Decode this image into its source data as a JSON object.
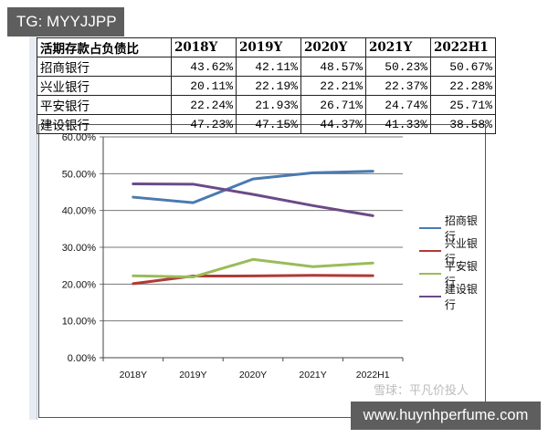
{
  "overlay": {
    "top_badge": "TG: MYYJJPP",
    "bottom_badge": "www.huynhperfume.com",
    "watermark": "雪球：平凡价投人"
  },
  "table": {
    "header": [
      "活期存款占负债比",
      "2018Y",
      "2019Y",
      "2020Y",
      "2021Y",
      "2022H1"
    ],
    "rows": [
      [
        "招商银行",
        "43.62%",
        "42.11%",
        "48.57%",
        "50.23%",
        "50.67%"
      ],
      [
        "兴业银行",
        "20.11%",
        "22.19%",
        "22.21%",
        "22.37%",
        "22.28%"
      ],
      [
        "平安银行",
        "22.24%",
        "21.93%",
        "26.71%",
        "24.74%",
        "25.71%"
      ],
      [
        "建设银行",
        "47.23%",
        "47.15%",
        "44.37%",
        "41.33%",
        "38.58%"
      ]
    ]
  },
  "chart_data": {
    "type": "line",
    "title": "",
    "xlabel": "",
    "ylabel": "",
    "categories": [
      "2018Y",
      "2019Y",
      "2020Y",
      "2021Y",
      "2022H1"
    ],
    "series": [
      {
        "name": "招商银行",
        "color": "#4a7ab0",
        "values": [
          43.62,
          42.11,
          48.57,
          50.23,
          50.67
        ]
      },
      {
        "name": "兴业银行",
        "color": "#b03a36",
        "values": [
          20.11,
          22.19,
          22.21,
          22.37,
          22.28
        ]
      },
      {
        "name": "平安银行",
        "color": "#9bbb59",
        "values": [
          22.24,
          21.93,
          26.71,
          24.74,
          25.71
        ]
      },
      {
        "name": "建设银行",
        "color": "#6b4a86",
        "values": [
          47.23,
          47.15,
          44.37,
          41.33,
          38.58
        ]
      }
    ],
    "yticks": [
      "0.00%",
      "10.00%",
      "20.00%",
      "30.00%",
      "40.00%",
      "50.00%",
      "60.00%"
    ],
    "ylim": [
      0,
      60
    ],
    "grid": true,
    "legend_position": "right"
  }
}
